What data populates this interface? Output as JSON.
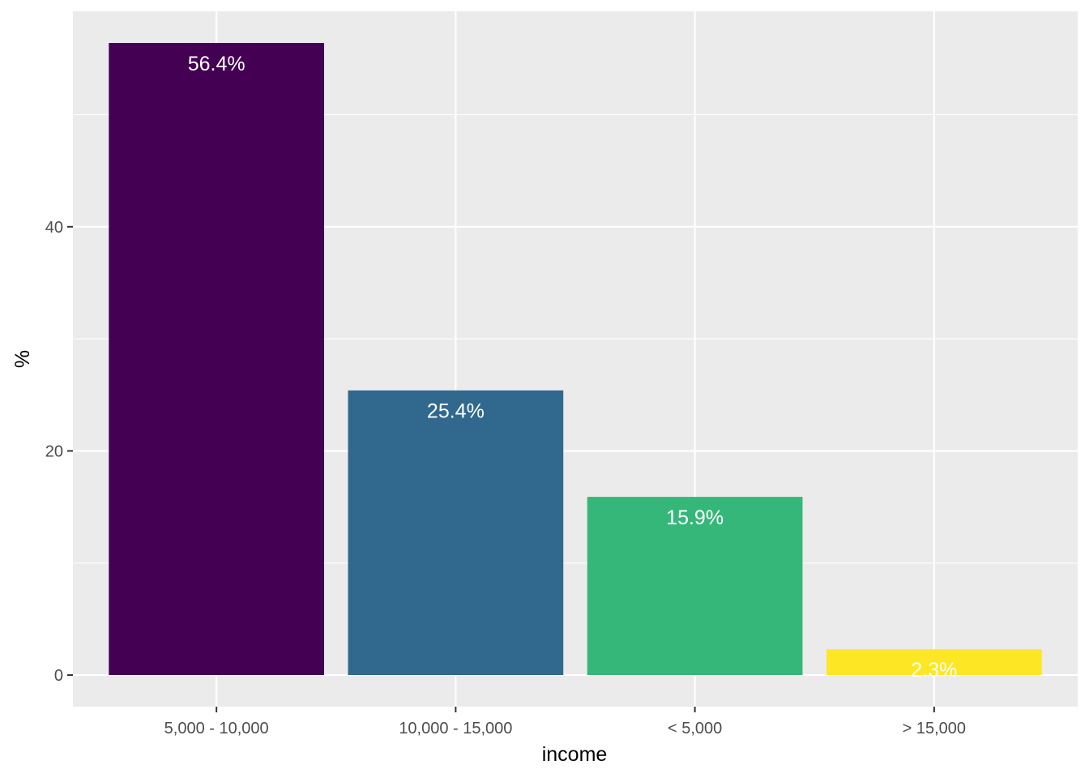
{
  "chart_data": {
    "type": "bar",
    "categories": [
      "5,000 - 10,000",
      "10,000 - 15,000",
      "< 5,000",
      "> 15,000"
    ],
    "values": [
      56.4,
      25.4,
      15.9,
      2.3
    ],
    "value_labels": [
      "56.4%",
      "25.4%",
      "15.9%",
      "2.3%"
    ],
    "colors": [
      "#440154",
      "#31688E",
      "#35B779",
      "#FDE725"
    ],
    "xlabel": "income",
    "ylabel": "%",
    "ylim": [
      -2.82,
      59.22
    ],
    "yticks": [
      0,
      20,
      40
    ],
    "ytick_labels": [
      "0",
      "20",
      "40"
    ],
    "grid": true,
    "background": "#EBEBEB",
    "legend": "none"
  }
}
